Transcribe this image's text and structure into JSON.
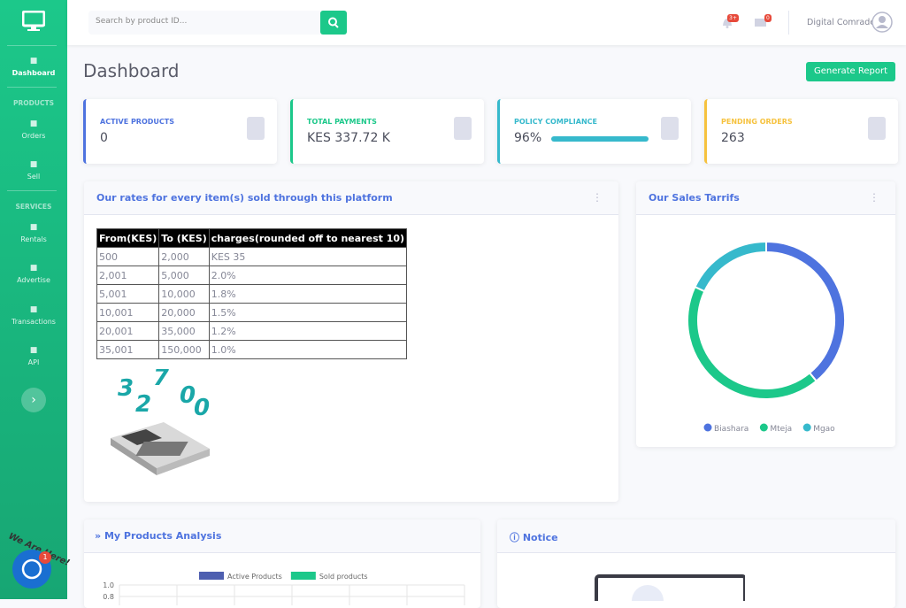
{
  "sidebar": {
    "items": [
      {
        "label": "Dashboard"
      },
      {
        "heading": "PRODUCTS"
      },
      {
        "label": "Orders"
      },
      {
        "label": "Sell"
      },
      {
        "heading": "SERVICES"
      },
      {
        "label": "Rentals"
      },
      {
        "label": "Advertise"
      },
      {
        "label": "Transactions"
      },
      {
        "label": "API"
      }
    ]
  },
  "topbar": {
    "search_placeholder": "Search by product ID...",
    "alerts_badge": "3+",
    "messages_badge": "0",
    "user": "Digital Comrade"
  },
  "header": {
    "title": "Dashboard",
    "button": "Generate Report"
  },
  "cards": [
    {
      "label": "ACTIVE PRODUCTS",
      "value": "0"
    },
    {
      "label": "TOTAL PAYMENTS",
      "value": "KES 337.72 K"
    },
    {
      "label": "POLICY COMPLIANCE",
      "value": "96%"
    },
    {
      "label": "PENDING ORDERS",
      "value": "263"
    }
  ],
  "rates": {
    "title": "Our rates for every item(s) sold through this platform",
    "table": {
      "header": [
        "From(KES)",
        "To (KES)",
        "charges(rounded off to nearest 10)"
      ],
      "rows": [
        [
          "500",
          "2,000",
          "KES 35"
        ],
        [
          "2,001",
          "5,000",
          "2.0%"
        ],
        [
          "5,001",
          "10,000",
          "1.8%"
        ],
        [
          "10,001",
          "20,000",
          "1.5%"
        ],
        [
          "20,001",
          "35,000",
          "1.2%"
        ],
        [
          "35,001",
          "150,000",
          "1.0%"
        ]
      ]
    },
    "illustration_digits": [
      "3",
      "2",
      "7",
      "0",
      "0"
    ]
  },
  "chart_data": [
    {
      "type": "doughnut",
      "title": "Our Sales Tarrifs",
      "categories": [
        "Biashara",
        "Mteja",
        "Mgao"
      ],
      "values": [
        39,
        43,
        18
      ],
      "colors": [
        "#4e73df",
        "#1cc88a",
        "#36b9cc"
      ]
    },
    {
      "type": "bar",
      "title": "My Products Analysis",
      "series": [
        {
          "name": "Active Products",
          "color": "#4e5fb0",
          "values": []
        },
        {
          "name": "Sold products",
          "color": "#1cc88a",
          "values": []
        }
      ],
      "ylim": [
        0,
        1
      ],
      "yticks": [
        {
          "value": 1,
          "label": "1.0"
        },
        {
          "value": 0.8,
          "label": "0.8"
        }
      ],
      "grid": true
    }
  ],
  "notice": {
    "title": "Notice"
  },
  "chat": {
    "text": "We Are Here!",
    "badge": "1"
  }
}
